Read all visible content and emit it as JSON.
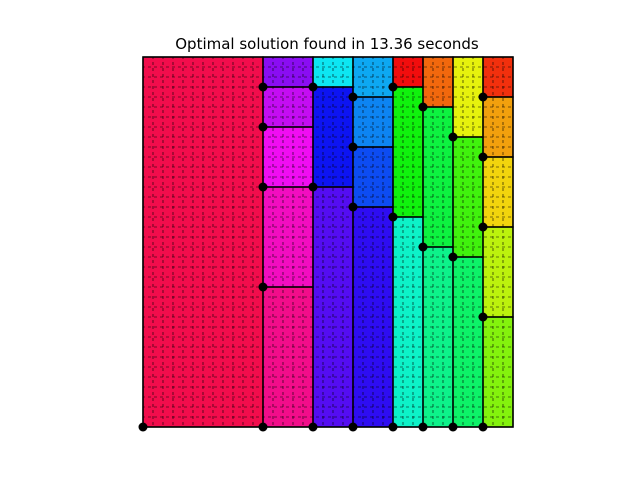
{
  "chart_data": {
    "type": "heatmap",
    "title": "Optimal solution found in 13.36 seconds",
    "xlabel": "",
    "ylabel": "",
    "xlim": [
      0,
      37
    ],
    "ylim": [
      0,
      37
    ],
    "axes_visible": false,
    "grid": "dashed grid lines on every unit cell",
    "rectangles": [
      {
        "x": 0,
        "y": 0,
        "w": 12,
        "h": 37,
        "color": "#f20d4c"
      },
      {
        "x": 12,
        "y": 34,
        "w": 5,
        "h": 3,
        "color": "#8a0df2"
      },
      {
        "x": 12,
        "y": 30,
        "w": 5,
        "h": 4,
        "color": "#c40df2"
      },
      {
        "x": 12,
        "y": 24,
        "w": 5,
        "h": 6,
        "color": "#f00df2"
      },
      {
        "x": 12,
        "y": 14,
        "w": 5,
        "h": 10,
        "color": "#f20dc0"
      },
      {
        "x": 12,
        "y": 0,
        "w": 5,
        "h": 14,
        "color": "#f20d8a"
      },
      {
        "x": 17,
        "y": 34,
        "w": 4,
        "h": 3,
        "color": "#0de6f2"
      },
      {
        "x": 17,
        "y": 24,
        "w": 4,
        "h": 10,
        "color": "#0d14f2"
      },
      {
        "x": 17,
        "y": 0,
        "w": 4,
        "h": 24,
        "color": "#540df2"
      },
      {
        "x": 21,
        "y": 33,
        "w": 4,
        "h": 4,
        "color": "#0da8f2"
      },
      {
        "x": 21,
        "y": 28,
        "w": 4,
        "h": 5,
        "color": "#0d84f2"
      },
      {
        "x": 21,
        "y": 22,
        "w": 4,
        "h": 6,
        "color": "#0d4cf2"
      },
      {
        "x": 21,
        "y": 0,
        "w": 4,
        "h": 22,
        "color": "#2e0df2"
      },
      {
        "x": 25,
        "y": 34,
        "w": 3,
        "h": 3,
        "color": "#f20d0d"
      },
      {
        "x": 25,
        "y": 21,
        "w": 3,
        "h": 13,
        "color": "#10f20d"
      },
      {
        "x": 25,
        "y": 0,
        "w": 3,
        "h": 21,
        "color": "#0df2c8"
      },
      {
        "x": 28,
        "y": 32,
        "w": 3,
        "h": 5,
        "color": "#f2680d"
      },
      {
        "x": 28,
        "y": 18,
        "w": 3,
        "h": 14,
        "color": "#0df240"
      },
      {
        "x": 28,
        "y": 0,
        "w": 3,
        "h": 18,
        "color": "#0df28a"
      },
      {
        "x": 31,
        "y": 29,
        "w": 3,
        "h": 8,
        "color": "#e6f20d"
      },
      {
        "x": 31,
        "y": 17,
        "w": 3,
        "h": 12,
        "color": "#40f20d"
      },
      {
        "x": 31,
        "y": 0,
        "w": 3,
        "h": 17,
        "color": "#0df268"
      },
      {
        "x": 34,
        "y": 33,
        "w": 3,
        "h": 4,
        "color": "#f2300d"
      },
      {
        "x": 34,
        "y": 27,
        "w": 3,
        "h": 6,
        "color": "#f2a00d"
      },
      {
        "x": 34,
        "y": 20,
        "w": 3,
        "h": 7,
        "color": "#f2d40d"
      },
      {
        "x": 34,
        "y": 11,
        "w": 3,
        "h": 9,
        "color": "#bcf20d"
      },
      {
        "x": 34,
        "y": 0,
        "w": 3,
        "h": 11,
        "color": "#84f20d"
      }
    ],
    "points": [
      [
        0,
        0
      ],
      [
        12,
        0
      ],
      [
        17,
        0
      ],
      [
        21,
        0
      ],
      [
        25,
        0
      ],
      [
        28,
        0
      ],
      [
        31,
        0
      ],
      [
        34,
        0
      ],
      [
        12,
        34
      ],
      [
        12,
        30
      ],
      [
        12,
        24
      ],
      [
        12,
        14
      ],
      [
        17,
        34
      ],
      [
        17,
        24
      ],
      [
        21,
        33
      ],
      [
        21,
        28
      ],
      [
        21,
        22
      ],
      [
        25,
        34
      ],
      [
        25,
        21
      ],
      [
        28,
        32
      ],
      [
        28,
        18
      ],
      [
        31,
        29
      ],
      [
        31,
        17
      ],
      [
        34,
        33
      ],
      [
        34,
        27
      ],
      [
        34,
        20
      ],
      [
        34,
        11
      ]
    ]
  }
}
